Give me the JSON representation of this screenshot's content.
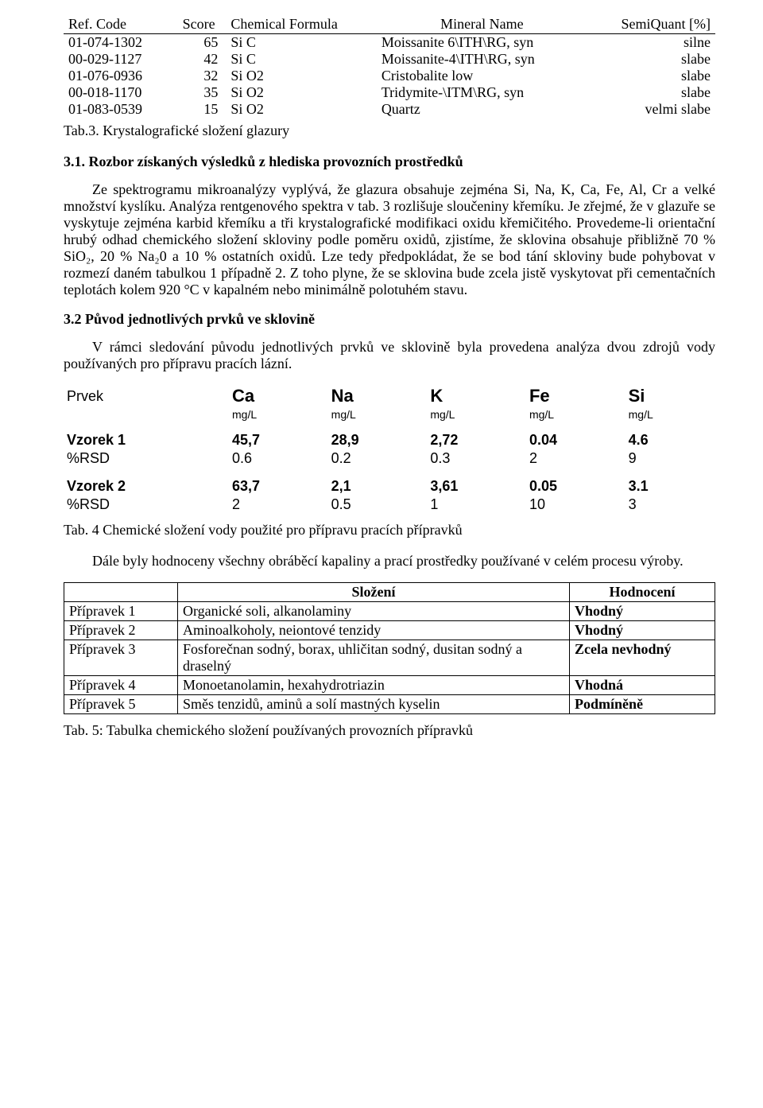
{
  "table1": {
    "headers": [
      "Ref. Code",
      "Score",
      "Chemical Formula",
      "Mineral Name",
      "SemiQuant [%]"
    ],
    "rows": [
      {
        "ref": "01-074-1302",
        "score": "65",
        "formula": "Si C",
        "name": "Moissanite 6\\ITH\\RG, syn",
        "sq": "silne"
      },
      {
        "ref": "00-029-1127",
        "score": "42",
        "formula": "Si C",
        "name": "Moissanite-4\\ITH\\RG, syn",
        "sq": "slabe"
      },
      {
        "ref": "01-076-0936",
        "score": "32",
        "formula": "Si O2",
        "name": "Cristobalite low",
        "sq": "slabe"
      },
      {
        "ref": "00-018-1170",
        "score": "35",
        "formula": "Si O2",
        "name": "Tridymite-\\ITM\\RG, syn",
        "sq": "slabe"
      },
      {
        "ref": "01-083-0539",
        "score": "15",
        "formula": "Si O2",
        "name": "Quartz",
        "sq": "velmi slabe"
      }
    ]
  },
  "cap_tab3": "Tab.3.  Krystalografické složení glazury",
  "sec31_title": "3.1. Rozbor získaných výsledků z hlediska provozních prostředků",
  "para31": "Ze spektrogramu mikroanalýzy vyplývá, že glazura obsahuje zejména Si, Na, K, Ca,  Fe, Al, Cr a velké množství kyslíku. Analýza rentgenového spektra v tab. 3 rozlišuje sloučeniny křemíku. Je zřejmé, že v glazuře se vyskytuje zejména karbid křemíku a tři krystalografické modifikaci oxidu křemičitého. Provedeme-li orientační hrubý odhad chemického složení skloviny podle poměru oxidů, zjistíme, že sklovina obsahuje přibližně 70 % SiO₂, 20 % Na₂0 a 10 % ostatních oxidů. Lze tedy předpokládat, že se bod tání skloviny bude pohybovat v rozmezí daném tabulkou 1 případně 2. Z toho plyne, že se sklovina bude zcela jistě vyskytovat při cementačních teplotách kolem 920 °C v kapalném nebo minimálně polotuhém stavu.",
  "sec32_title": "3.2  Původ jednotlivých prvků ve sklovině",
  "para32": "V rámci sledování původu jednotlivých prvků ve sklovině byla provedena analýza dvou zdrojů  vody používaných pro přípravu pracích lázní.",
  "table4": {
    "prvek_label": "Prvek",
    "elements": [
      "Ca",
      "Na",
      "K",
      "Fe",
      "Si"
    ],
    "unit": "mg/L",
    "rows": [
      {
        "label": "Vzorek 1",
        "vals": [
          "45,7",
          "28,9",
          "2,72",
          "0.04",
          "4.6"
        ],
        "bold": true
      },
      {
        "label": "%RSD",
        "vals": [
          "0.6",
          "0.2",
          "0.3",
          "2",
          "9"
        ],
        "bold": false
      },
      {
        "label": "Vzorek 2",
        "vals": [
          "63,7",
          "2,1",
          "3,61",
          "0.05",
          "3.1"
        ],
        "bold": true
      },
      {
        "label": "%RSD",
        "vals": [
          "2",
          "0.5",
          "1",
          "10",
          "3"
        ],
        "bold": false
      }
    ]
  },
  "cap_tab4": "Tab. 4  Chemické složení vody použité pro přípravu pracích přípravků",
  "para_dale": "Dále byly hodnoceny všechny obráběcí kapaliny a prací prostředky používané v celém procesu výroby.",
  "table5": {
    "headers": [
      "",
      "Složení",
      "Hodnocení"
    ],
    "rows": [
      {
        "name": "Přípravek 1",
        "slo": "Organické soli, alkanolaminy",
        "hod": "Vhodný"
      },
      {
        "name": "Přípravek 2",
        "slo": "Aminoalkoholy, neiontové tenzidy",
        "hod": "Vhodný"
      },
      {
        "name": "Přípravek 3",
        "slo": "Fosforečnan sodný, borax, uhličitan sodný, dusitan sodný a draselný",
        "hod": "Zcela nevhodný"
      },
      {
        "name": "Přípravek 4",
        "slo": "Monoetanolamin, hexahydrotriazin",
        "hod": "Vhodná"
      },
      {
        "name": "Přípravek 5",
        "slo": "Směs tenzidů, aminů a solí mastných kyselin",
        "hod": "Podmíněně"
      }
    ]
  },
  "cap_tab5": "Tab. 5:  Tabulka chemického složení používaných provozních přípravků"
}
